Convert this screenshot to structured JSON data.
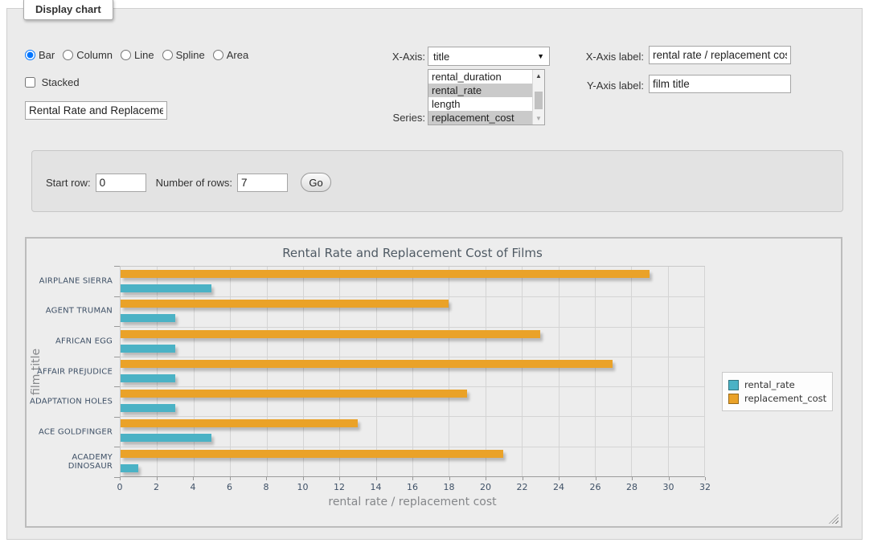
{
  "panel": {
    "legend_title": "Display chart"
  },
  "chart_types": [
    {
      "label": "Bar",
      "selected": true
    },
    {
      "label": "Column",
      "selected": false
    },
    {
      "label": "Line",
      "selected": false
    },
    {
      "label": "Spline",
      "selected": false
    },
    {
      "label": "Area",
      "selected": false
    }
  ],
  "stacked": {
    "label": "Stacked",
    "checked": false
  },
  "title_input": {
    "value": "Rental Rate and Replacement Cost of Films"
  },
  "x_axis_select": {
    "label": "X-Axis:",
    "selected": "title"
  },
  "series_select": {
    "label": "Series:",
    "options": [
      {
        "label": "rental_duration",
        "selected": false
      },
      {
        "label": "rental_rate",
        "selected": true
      },
      {
        "label": "length",
        "selected": false
      },
      {
        "label": "replacement_cost",
        "selected": true
      }
    ]
  },
  "x_axis_label_field": {
    "label": "X-Axis label:",
    "value": "rental rate / replacement cost"
  },
  "y_axis_label_field": {
    "label": "Y-Axis label:",
    "value": "film title"
  },
  "row_controls": {
    "start_row_label": "Start row:",
    "start_row_value": "0",
    "num_rows_label": "Number of rows:",
    "num_rows_value": "7",
    "go_label": "Go"
  },
  "chart_data": {
    "type": "bar",
    "orientation": "horizontal",
    "title": "Rental Rate and Replacement Cost of Films",
    "categories": [
      "AIRPLANE SIERRA",
      "AGENT TRUMAN",
      "AFRICAN EGG",
      "AFFAIR PREJUDICE",
      "ADAPTATION HOLES",
      "ACE GOLDFINGER",
      "ACADEMY DINOSAUR"
    ],
    "series": [
      {
        "name": "rental_rate",
        "color": "#4bb2c5",
        "values": [
          4.99,
          2.99,
          2.99,
          2.99,
          2.99,
          4.99,
          0.99
        ]
      },
      {
        "name": "replacement_cost",
        "color": "#EAA228",
        "values": [
          28.99,
          17.99,
          22.99,
          26.99,
          18.99,
          12.99,
          20.99
        ]
      }
    ],
    "bar_order_top_to_bottom": [
      "replacement_cost",
      "rental_rate"
    ],
    "xlabel": "rental rate / replacement cost",
    "ylabel": "film title",
    "xlim": [
      0,
      32
    ],
    "xticks": [
      0,
      2,
      4,
      6,
      8,
      10,
      12,
      14,
      16,
      18,
      20,
      22,
      24,
      26,
      28,
      30,
      32
    ],
    "grid": true,
    "legend_position": "right"
  }
}
